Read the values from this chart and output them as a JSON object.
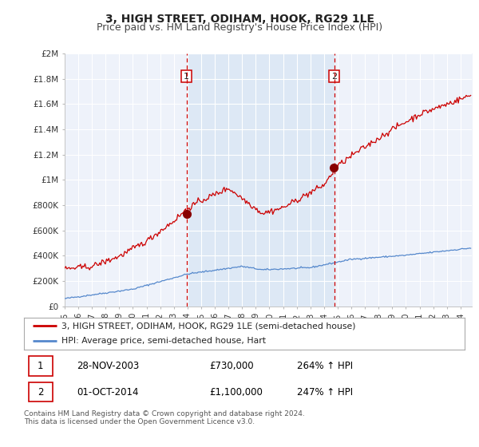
{
  "title": "3, HIGH STREET, ODIHAM, HOOK, RG29 1LE",
  "subtitle": "Price paid vs. HM Land Registry's House Price Index (HPI)",
  "ylabel_ticks": [
    "£0",
    "£200K",
    "£400K",
    "£600K",
    "£800K",
    "£1M",
    "£1.2M",
    "£1.4M",
    "£1.6M",
    "£1.8M",
    "£2M"
  ],
  "ytick_values": [
    0,
    200000,
    400000,
    600000,
    800000,
    1000000,
    1200000,
    1400000,
    1600000,
    1800000,
    2000000
  ],
  "ylim": [
    0,
    2000000
  ],
  "xlim_start": 1995.0,
  "xlim_end": 2024.83,
  "hpi_color": "#5588cc",
  "price_color": "#cc0000",
  "shade_color": "#dde8f5",
  "marker1_date": 2003.92,
  "marker2_date": 2014.75,
  "annotation1_text": "1",
  "annotation2_text": "2",
  "legend_line1": "3, HIGH STREET, ODIHAM, HOOK, RG29 1LE (semi-detached house)",
  "legend_line2": "HPI: Average price, semi-detached house, Hart",
  "table_row1_num": "1",
  "table_row1_date": "28-NOV-2003",
  "table_row1_price": "£730,000",
  "table_row1_hpi": "264% ↑ HPI",
  "table_row2_num": "2",
  "table_row2_date": "01-OCT-2014",
  "table_row2_price": "£1,100,000",
  "table_row2_hpi": "247% ↑ HPI",
  "footer_text": "Contains HM Land Registry data © Crown copyright and database right 2024.\nThis data is licensed under the Open Government Licence v3.0.",
  "background_color": "#ffffff",
  "plot_bg_color": "#eef2fa",
  "grid_color": "#ffffff",
  "vline_color": "#cc0000",
  "title_fontsize": 10,
  "subtitle_fontsize": 9
}
